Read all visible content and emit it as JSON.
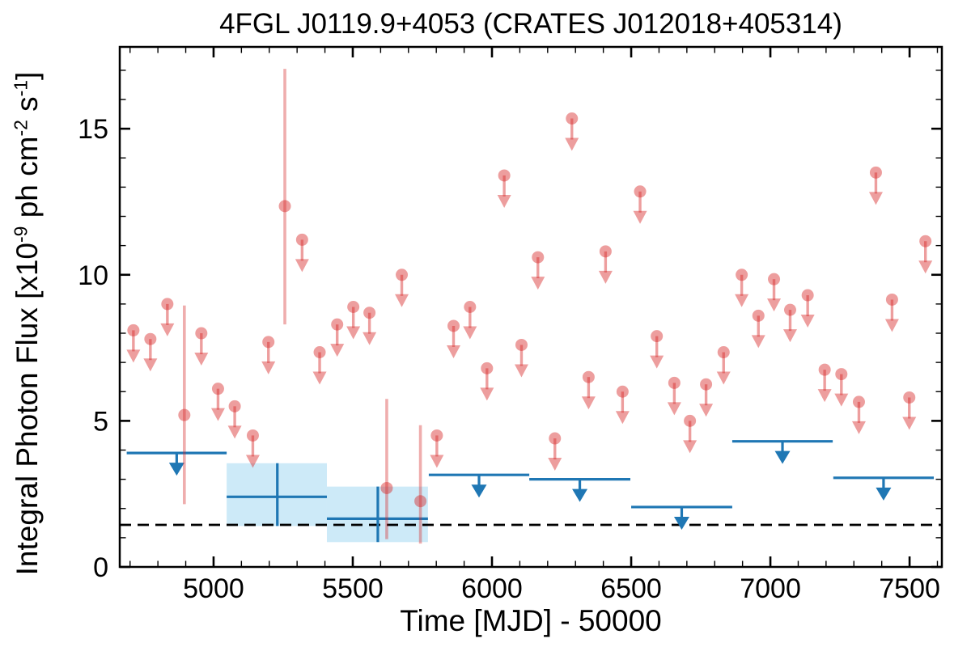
{
  "chart_data": {
    "type": "scatter",
    "title": "4FGL J0119.9+4053 (CRATES J012018+405314)",
    "xlabel": "Time [MJD] - 50000",
    "ylabel": "Integral Photon Flux [x10^-9 ph cm^-2 s^-1]",
    "ylabel_parts": {
      "prefix": "Integral Photon Flux [x10",
      "sup1": "-9",
      "mid1": " ph cm",
      "sup2": "-2",
      "mid2": " s",
      "sup3": "-1",
      "suffix": "]"
    },
    "xlim": [
      4663,
      7616
    ],
    "ylim": [
      0,
      17.8
    ],
    "x_major_ticks": [
      5000,
      5500,
      6000,
      6500,
      7000,
      7500
    ],
    "x_minor_tick_step": 100,
    "y_major_ticks": [
      0,
      5,
      10,
      15
    ],
    "y_minor_tick_step": 1,
    "grid": false,
    "legend": "none",
    "reference_line": {
      "y": 1.44,
      "style": "dashed",
      "color": "#000000"
    },
    "series": [
      {
        "name": "bimonthly-upper-limits",
        "type": "upper_limit_points",
        "marker": "circle-down-arrow",
        "color": "#d62728",
        "alpha": 0.45,
        "points": [
          [
            4712,
            8.1
          ],
          [
            4773,
            7.8
          ],
          [
            4834,
            9.0
          ],
          [
            4956,
            8.0
          ],
          [
            5016,
            6.1
          ],
          [
            5076,
            5.5
          ],
          [
            5141,
            4.5
          ],
          [
            5197,
            7.7
          ],
          [
            5318,
            11.2
          ],
          [
            5381,
            7.35
          ],
          [
            5444,
            8.3
          ],
          [
            5502,
            8.9
          ],
          [
            5560,
            8.7
          ],
          [
            5676,
            10.0
          ],
          [
            5802,
            4.5
          ],
          [
            5862,
            8.25
          ],
          [
            5921,
            8.9
          ],
          [
            5982,
            6.8
          ],
          [
            6044,
            13.4
          ],
          [
            6106,
            7.6
          ],
          [
            6165,
            10.6
          ],
          [
            6226,
            4.4
          ],
          [
            6287,
            15.35
          ],
          [
            6347,
            6.5
          ],
          [
            6408,
            10.8
          ],
          [
            6469,
            6.0
          ],
          [
            6532,
            12.85
          ],
          [
            6592,
            7.9
          ],
          [
            6655,
            6.3
          ],
          [
            6711,
            5.0
          ],
          [
            6769,
            6.25
          ],
          [
            6832,
            7.35
          ],
          [
            6897,
            10.0
          ],
          [
            6957,
            8.6
          ],
          [
            7013,
            9.85
          ],
          [
            7071,
            8.8
          ],
          [
            7134,
            9.3
          ],
          [
            7195,
            6.75
          ],
          [
            7255,
            6.6
          ],
          [
            7318,
            5.65
          ],
          [
            7379,
            13.5
          ],
          [
            7437,
            9.15
          ],
          [
            7499,
            5.8
          ],
          [
            7557,
            11.15
          ]
        ]
      },
      {
        "name": "bimonthly-detections",
        "type": "points_with_errors",
        "marker": "circle-errorbar",
        "color": "#d62728",
        "alpha": 0.45,
        "bar_alpha": 0.38,
        "points": [
          {
            "t": 4895,
            "f": 5.2,
            "lo": 2.15,
            "hi": 8.95
          },
          {
            "t": 5256,
            "f": 12.35,
            "lo": 8.3,
            "hi": 17.05
          },
          {
            "t": 5622,
            "f": 2.7,
            "lo": 0.95,
            "hi": 5.75
          },
          {
            "t": 5743,
            "f": 2.25,
            "lo": 0.8,
            "hi": 4.85
          }
        ]
      },
      {
        "name": "yearly-upper-limits",
        "type": "upper_limit_bins",
        "marker": "hline-down-arrow",
        "color": "#1f77b4",
        "bins": [
          {
            "t0": 4688,
            "t1": 5047,
            "f": 3.9
          },
          {
            "t0": 5773,
            "t1": 6134,
            "f": 3.15
          },
          {
            "t0": 6134,
            "t1": 6497,
            "f": 3.0
          },
          {
            "t0": 6500,
            "t1": 6863,
            "f": 2.05
          },
          {
            "t0": 6863,
            "t1": 7224,
            "f": 4.3
          },
          {
            "t0": 7226,
            "t1": 7587,
            "f": 3.05
          }
        ]
      },
      {
        "name": "yearly-detections",
        "type": "bins_with_errors",
        "marker": "cross-with-box",
        "color": "#1f77b4",
        "box_color": "#cdeaf8",
        "bins": [
          {
            "t0": 5047,
            "t1": 5407,
            "t": 5229,
            "f": 2.4,
            "lo": 1.4,
            "hi": 3.55
          },
          {
            "t0": 5407,
            "t1": 5770,
            "t": 5590,
            "f": 1.65,
            "lo": 0.85,
            "hi": 2.75
          }
        ]
      }
    ]
  },
  "colors": {
    "frame": "#000000",
    "background": "#ffffff",
    "blue": "#1f77b4",
    "light_blue_box": "#cdeaf8",
    "pink_base": "#d62728",
    "dashed_line": "#000000"
  }
}
